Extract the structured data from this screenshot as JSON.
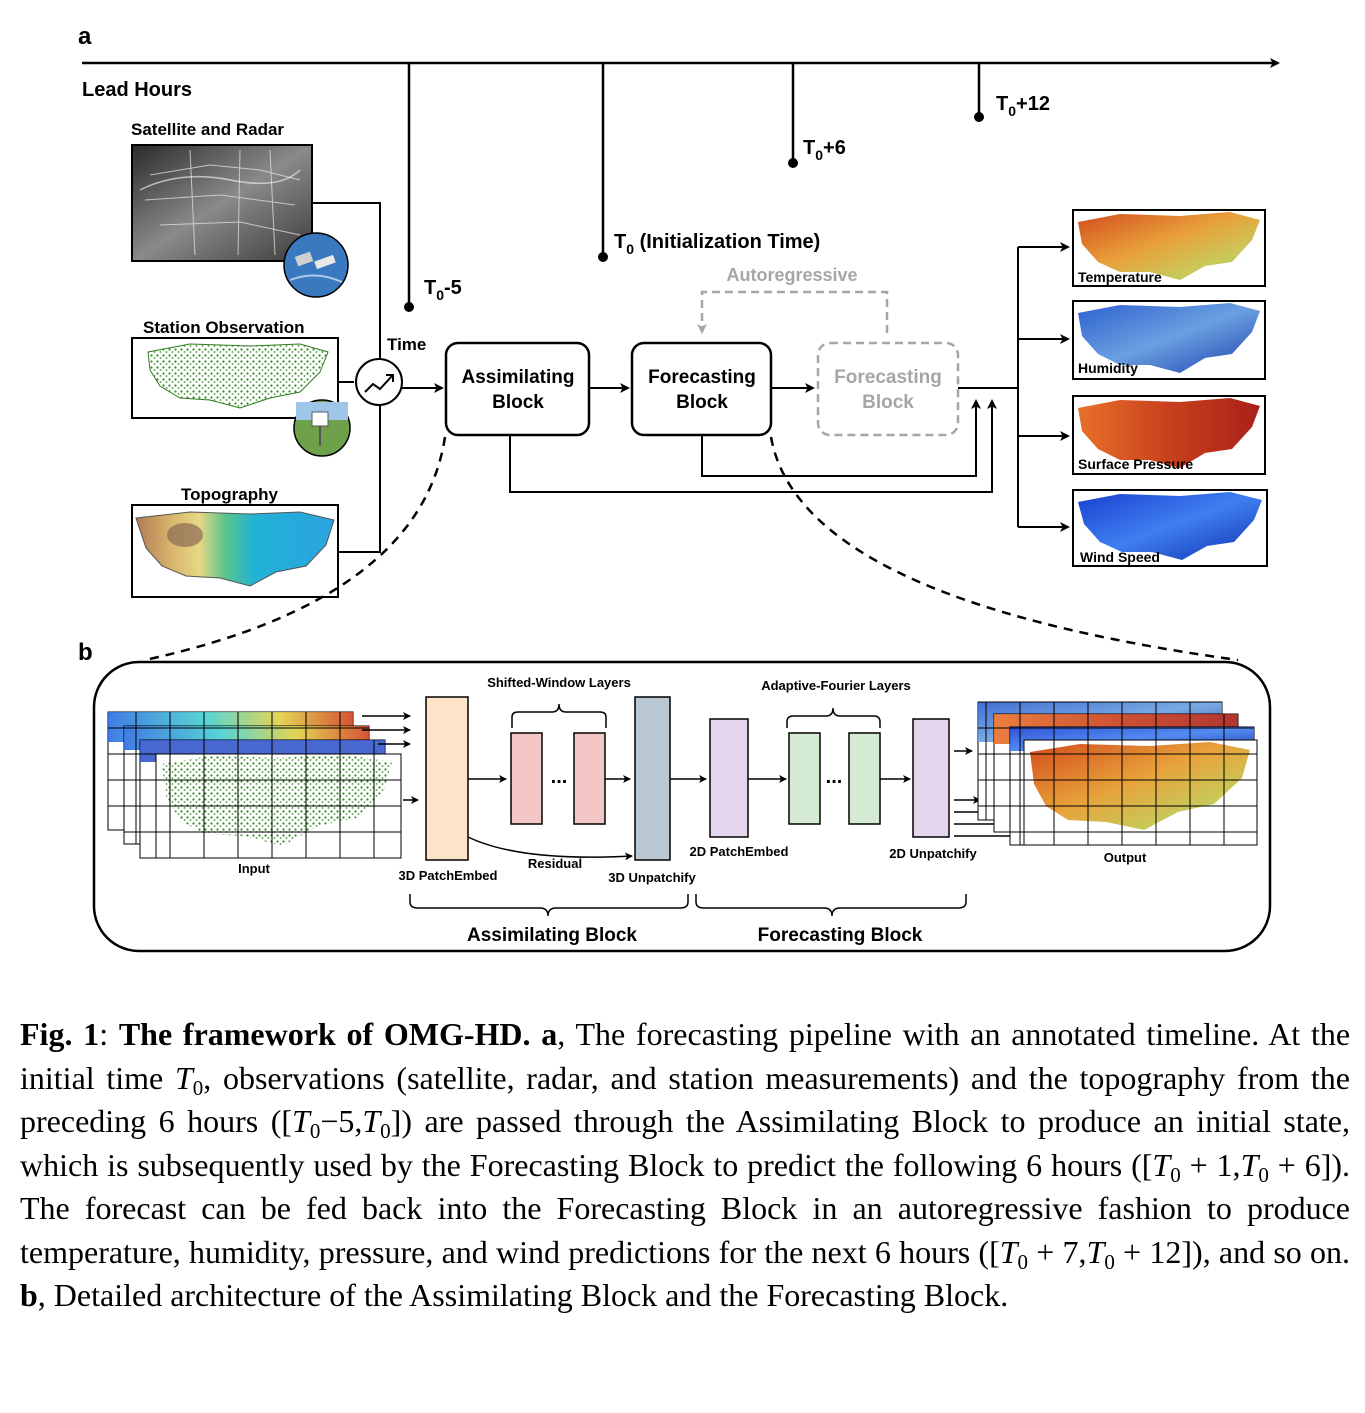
{
  "panel_a": {
    "panel_label": "a",
    "timeline": {
      "axis_label": "Lead Hours",
      "marks": [
        {
          "main": "T",
          "sub": "0",
          "suffix": "-5"
        },
        {
          "main": "T",
          "sub": "0",
          "suffix": " (Initialization Time)"
        },
        {
          "main": "T",
          "sub": "0",
          "suffix": "+6"
        },
        {
          "main": "T",
          "sub": "0",
          "suffix": "+12"
        }
      ]
    },
    "inputs": {
      "satellite": "Satellite and Radar",
      "station": "Station Observation",
      "topography": "Topography"
    },
    "time_label": "Time",
    "blocks": {
      "assimilating": [
        "Assimilating",
        "Block"
      ],
      "forecasting": [
        "Forecasting",
        "Block"
      ],
      "forecasting_ghost": [
        "Forecasting",
        "Block"
      ],
      "autoregressive": "Autoregressive"
    },
    "outputs": [
      "Temperature",
      "Humidity",
      "Surface Pressure",
      "Wind Speed"
    ]
  },
  "panel_b": {
    "panel_label": "b",
    "shifted_window": "Shifted-Window Layers",
    "adaptive_fourier": "Adaptive-Fourier Layers",
    "input": "Input",
    "output": "Output",
    "patch_embed_3d": "3D PatchEmbed",
    "unpatchify_3d": "3D Unpatchify",
    "patch_embed_2d": "2D PatchEmbed",
    "unpatchify_2d": "2D Unpatchify",
    "residual": "Residual",
    "dots": "...",
    "assimilating_block": "Assimilating Block",
    "forecasting_block": "Forecasting Block"
  },
  "caption": {
    "fig": "Fig. 1",
    "colon": ": ",
    "title": "The framework of OMG-HD.",
    "a_label": "a",
    "text_1": ", The forecasting pipeline with an annotated timeline. At the initial time ",
    "t": "T",
    "zero": "0",
    "text_2": ", observations (satellite, radar, and station measurements) and the topography from the preceding 6 hours ([",
    "range_1": "−5,",
    "text_3": "]) are passed through the Assimilating Block to produce an initial state, which is subsequently used by the Forecasting Block to predict the following 6 hours ([",
    "range_2a": " + 1,",
    "range_2b": " + 6",
    "text_4": "]). The forecast can be fed back into the Forecasting Block in an autoregressive fashion to produce temperature, humidity, pressure, and wind predictions for the next 6 hours ([",
    "range_3a": " + 7,",
    "range_3b": " + 12",
    "text_5": "]), and so on. ",
    "b_label": "b",
    "text_6": ", Detailed architecture of the Assimilating Block and the Forecasting Block."
  },
  "colors": {
    "patch_embed_3d": "#fde3c8",
    "swin": "#f4c6c6",
    "unpatchify_3d": "#b9c8d3",
    "patch_2d": "#e2d5ec",
    "afno": "#d5ebd3",
    "ghost": "#a6a6a6"
  }
}
